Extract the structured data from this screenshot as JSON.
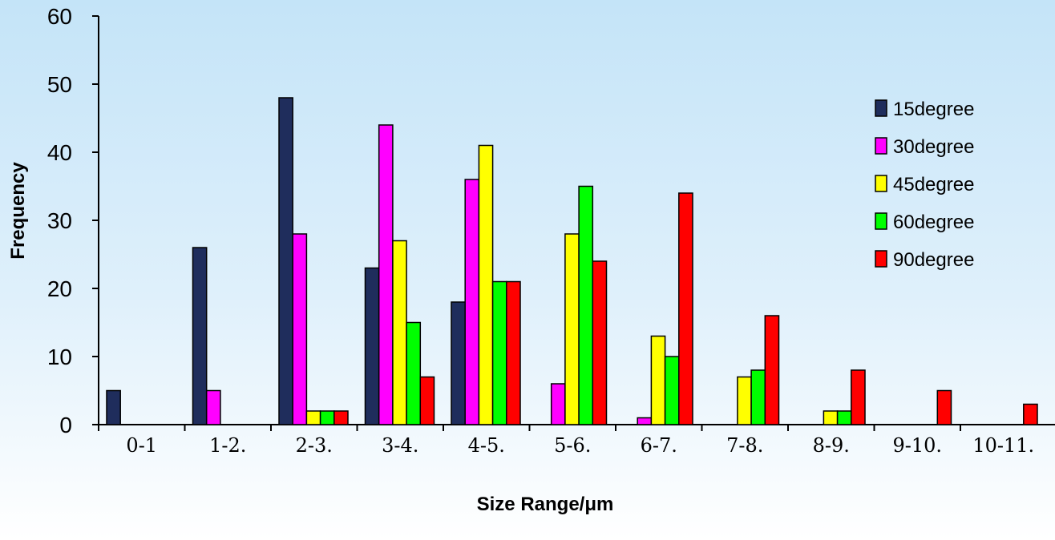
{
  "chart_data": {
    "type": "bar",
    "title": "",
    "xlabel": "Size Range/μm",
    "ylabel": "Frequency",
    "ylim": [
      0,
      60
    ],
    "yticks": [
      0,
      10,
      20,
      30,
      40,
      50,
      60
    ],
    "grid": false,
    "legend_position": "right",
    "categories": [
      "0-1",
      "1-2.",
      "2-3.",
      "3-4.",
      "4-5.",
      "5-6.",
      "6-7.",
      "7-8.",
      "8-9.",
      "9-10.",
      "10-11."
    ],
    "series": [
      {
        "name": "15degree",
        "color": "#1f2d5c",
        "values": [
          5,
          26,
          48,
          23,
          18,
          0,
          0,
          0,
          0,
          0,
          0
        ]
      },
      {
        "name": "30degree",
        "color": "#ff00ff",
        "values": [
          0,
          5,
          28,
          44,
          36,
          6,
          1,
          0,
          0,
          0,
          0
        ]
      },
      {
        "name": "45degree",
        "color": "#ffff00",
        "values": [
          0,
          0,
          2,
          27,
          41,
          28,
          13,
          7,
          2,
          0,
          0
        ]
      },
      {
        "name": "60degree",
        "color": "#00ff00",
        "values": [
          0,
          0,
          2,
          15,
          21,
          35,
          10,
          8,
          2,
          0,
          0
        ]
      },
      {
        "name": "90degree",
        "color": "#ff0000",
        "values": [
          0,
          0,
          2,
          7,
          21,
          24,
          34,
          16,
          8,
          5,
          3
        ]
      }
    ]
  }
}
